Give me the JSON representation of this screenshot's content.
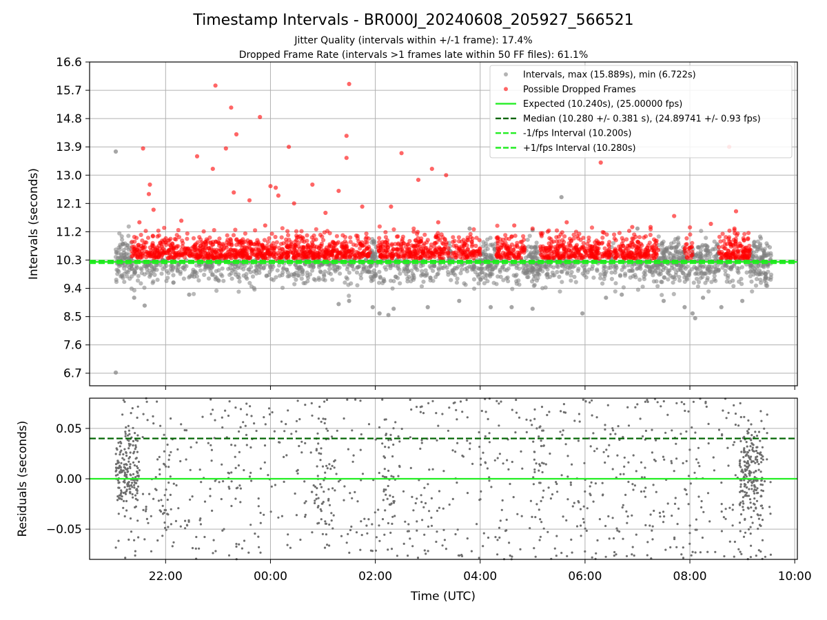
{
  "title": "Timestamp Intervals - BR000J_20240608_205927_566521",
  "subtitle_jitter": "Jitter Quality (intervals within +/-1 frame): 17.4%",
  "subtitle_dropped": "Dropped Frame Rate (intervals >1 frames late within 50 FF files): 61.1%",
  "colors": {
    "intervals": "#808080",
    "dropped": "#ff0000",
    "expected": "#22ee22",
    "median": "#006400",
    "fps_bounds": "#22ee22",
    "grid": "#b0b0b0"
  },
  "chart_data": [
    {
      "type": "scatter",
      "ylabel": "Intervals (seconds)",
      "ylim": [
        6.3,
        16.6
      ],
      "yticks": [
        16.6,
        15.7,
        14.8,
        13.9,
        13.0,
        12.1,
        11.2,
        10.3,
        9.4,
        8.5,
        7.6,
        6.7
      ],
      "ytick_labels": [
        "16.6",
        "15.7",
        "14.8",
        "13.9",
        "13.0",
        "12.1",
        "11.2",
        "10.3",
        "9.4",
        "8.5",
        "7.6",
        "6.7"
      ],
      "grid": true,
      "legend_position": "top-right",
      "legend": [
        {
          "label": "Intervals, max (15.889s), min (6.722s)",
          "kind": "dot",
          "color": "#808080"
        },
        {
          "label": "Possible Dropped Frames",
          "kind": "dot",
          "color": "#ff0000"
        },
        {
          "label": "Expected (10.240s), (25.00000 fps)",
          "kind": "line",
          "color": "#22ee22",
          "dash": "solid"
        },
        {
          "label": "Median (10.280 +/- 0.381 s), (24.89741 +/- 0.93 fps)",
          "kind": "line",
          "color": "#006400",
          "dash": "dashed"
        },
        {
          "label": "-1/fps Interval (10.200s)",
          "kind": "line",
          "color": "#22ee22",
          "dash": "dashed"
        },
        {
          "label": "+1/fps Interval (10.280s)",
          "kind": "line",
          "color": "#22ee22",
          "dash": "dashed"
        }
      ],
      "reference_lines": [
        {
          "name": "expected",
          "y": 10.24,
          "color": "#22ee22",
          "dash": "solid"
        },
        {
          "name": "median",
          "y": 10.28,
          "color": "#006400",
          "dash": "dashed"
        },
        {
          "name": "minus-fps",
          "y": 10.2,
          "color": "#22ee22",
          "dash": "dashed"
        },
        {
          "name": "plus-fps",
          "y": 10.28,
          "color": "#22ee22",
          "dash": "dashed"
        }
      ],
      "intervals_max": 15.889,
      "intervals_min": 6.722,
      "dropped_frames_sample": [
        [
          21.57,
          13.85
        ],
        [
          21.7,
          12.7
        ],
        [
          21.68,
          12.4
        ],
        [
          21.77,
          11.9
        ],
        [
          22.6,
          13.6
        ],
        [
          22.95,
          15.85
        ],
        [
          22.9,
          13.2
        ],
        [
          23.25,
          15.15
        ],
        [
          23.15,
          13.85
        ],
        [
          23.35,
          14.3
        ],
        [
          23.3,
          12.45
        ],
        [
          23.6,
          12.2
        ],
        [
          23.8,
          14.85
        ],
        [
          23.9,
          11.4
        ],
        [
          24.0,
          12.65
        ],
        [
          24.1,
          12.6
        ],
        [
          24.15,
          12.35
        ],
        [
          24.35,
          13.9
        ],
        [
          24.45,
          12.1
        ],
        [
          24.8,
          12.7
        ],
        [
          25.05,
          11.8
        ],
        [
          25.3,
          12.5
        ],
        [
          25.45,
          13.55
        ],
        [
          25.5,
          15.9
        ],
        [
          25.45,
          14.25
        ],
        [
          25.75,
          12.0
        ],
        [
          26.3,
          12.0
        ],
        [
          26.5,
          13.7
        ],
        [
          26.82,
          12.85
        ],
        [
          27.08,
          13.2
        ],
        [
          27.35,
          13.0
        ],
        [
          27.2,
          11.5
        ],
        [
          28.65,
          11.4
        ],
        [
          29.0,
          11.3
        ],
        [
          29.65,
          11.5
        ],
        [
          30.3,
          13.4
        ],
        [
          30.9,
          11.35
        ],
        [
          31.25,
          11.35
        ],
        [
          31.7,
          11.7
        ],
        [
          32.4,
          11.45
        ],
        [
          32.75,
          13.9
        ],
        [
          32.88,
          11.85
        ],
        [
          32.85,
          11.3
        ],
        [
          21.5,
          11.5
        ],
        [
          22.3,
          11.55
        ]
      ],
      "intervals_sample": [
        [
          21.05,
          13.75
        ],
        [
          21.05,
          6.72
        ],
        [
          29.55,
          12.3
        ],
        [
          21.4,
          9.1
        ],
        [
          21.6,
          8.85
        ],
        [
          22.45,
          9.2
        ],
        [
          25.3,
          8.9
        ],
        [
          25.5,
          9.0
        ],
        [
          25.95,
          8.8
        ],
        [
          26.08,
          8.6
        ],
        [
          26.25,
          8.55
        ],
        [
          26.35,
          8.75
        ],
        [
          27.0,
          8.8
        ],
        [
          27.6,
          9.0
        ],
        [
          28.2,
          8.8
        ],
        [
          28.6,
          8.8
        ],
        [
          29.0,
          8.75
        ],
        [
          29.95,
          8.6
        ],
        [
          30.4,
          9.1
        ],
        [
          30.7,
          9.2
        ],
        [
          31.5,
          9.0
        ],
        [
          31.9,
          8.8
        ],
        [
          32.05,
          8.6
        ],
        [
          32.1,
          8.45
        ],
        [
          32.25,
          9.1
        ],
        [
          32.6,
          8.8
        ],
        [
          33.0,
          9.0
        ],
        [
          27.8,
          11.3
        ],
        [
          29.0,
          11.25
        ],
        [
          31.0,
          11.3
        ]
      ]
    },
    {
      "type": "scatter",
      "xlabel": "Time (UTC)",
      "ylabel": "Residuals (seconds)",
      "ylim": [
        -0.08,
        0.08
      ],
      "yticks": [
        0.05,
        0.0,
        -0.05
      ],
      "ytick_labels": [
        "0.05",
        "0.00",
        "−0.05"
      ],
      "xlim": [
        20.55,
        34.05
      ],
      "xticks": [
        22,
        24,
        26,
        28,
        30,
        32,
        34
      ],
      "xtick_labels": [
        "22:00",
        "00:00",
        "02:00",
        "04:00",
        "06:00",
        "08:00",
        "10:00"
      ],
      "grid": true,
      "reference_lines": [
        {
          "name": "median-residual",
          "y": 0.04,
          "color": "#006400",
          "dash": "dashed"
        },
        {
          "name": "zero-residual",
          "y": 0.0,
          "color": "#22ee22",
          "dash": "solid"
        }
      ]
    }
  ]
}
